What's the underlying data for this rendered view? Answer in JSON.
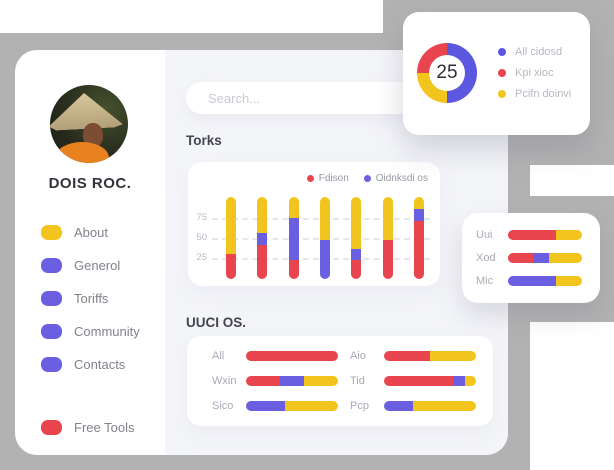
{
  "colors": {
    "red": "#E8454E",
    "yellow": "#F1C51D",
    "purple": "#6A5FE0",
    "purple_dark": "#5B57DE",
    "gray_bg": "#B2B2B2",
    "content_bg": "#F4F5F9"
  },
  "profile": {
    "name": "DOIS ROC."
  },
  "sidebar": {
    "items": [
      {
        "label": "About",
        "color": "yellow"
      },
      {
        "label": "Generol",
        "color": "purple"
      },
      {
        "label": "Toriffs",
        "color": "purple"
      },
      {
        "label": "Community",
        "color": "purple"
      },
      {
        "label": "Contacts",
        "color": "purple"
      }
    ],
    "footer_item": {
      "label": "Free Tools",
      "color": "red"
    }
  },
  "search": {
    "placeholder": "Search..."
  },
  "donut_card": {
    "center_value": "25",
    "segments": [
      {
        "label": "All cidosd",
        "color": "purple_dark",
        "from": 0,
        "to": 50
      },
      {
        "label": "Kpi xioc",
        "color": "red",
        "from": 75,
        "to": 100
      },
      {
        "label": "Pcifn doinvi",
        "color": "yellow",
        "from": 50,
        "to": 75
      }
    ]
  },
  "torks_chart": {
    "type": "stacked-bar",
    "title": "Torks",
    "legend": [
      {
        "label": "Fdison",
        "color": "red"
      },
      {
        "label": "Oidnksdi os",
        "color": "purple"
      }
    ],
    "y_ticks": [
      75,
      50,
      25
    ],
    "series_order": [
      "red",
      "purple",
      "yellow"
    ],
    "bars": [
      [
        31,
        0,
        72
      ],
      [
        43,
        15,
        45
      ],
      [
        24,
        52,
        27
      ],
      [
        0,
        49,
        54
      ],
      [
        24,
        14,
        65
      ],
      [
        49,
        0,
        54
      ],
      [
        73,
        14,
        16
      ]
    ]
  },
  "side_chart": {
    "type": "stacked-hbar",
    "rows": [
      {
        "label": "Uui",
        "segments": [
          [
            "red",
            65
          ],
          [
            "yellow",
            35
          ]
        ]
      },
      {
        "label": "Xod",
        "segments": [
          [
            "red",
            35
          ],
          [
            "purple",
            21
          ],
          [
            "yellow",
            44
          ]
        ]
      },
      {
        "label": "Mic",
        "segments": [
          [
            "purple",
            65
          ],
          [
            "yellow",
            35
          ]
        ]
      }
    ]
  },
  "uuci_chart": {
    "type": "stacked-hbar",
    "title": "UUCI OS.",
    "columns": [
      [
        {
          "label": "All",
          "segments": [
            [
              "red",
              100
            ]
          ]
        },
        {
          "label": "Wxin",
          "segments": [
            [
              "red",
              37
            ],
            [
              "purple",
              26
            ],
            [
              "yellow",
              37
            ]
          ]
        },
        {
          "label": "Sico",
          "segments": [
            [
              "purple",
              42
            ],
            [
              "yellow",
              58
            ]
          ]
        }
      ],
      [
        {
          "label": "Aio",
          "segments": [
            [
              "red",
              50
            ],
            [
              "yellow",
              50
            ]
          ]
        },
        {
          "label": "Tid",
          "segments": [
            [
              "red",
              75
            ],
            [
              "purple",
              13
            ],
            [
              "yellow",
              12
            ]
          ]
        },
        {
          "label": "Pcp",
          "segments": [
            [
              "purple",
              31
            ],
            [
              "yellow",
              69
            ]
          ]
        }
      ]
    ]
  }
}
